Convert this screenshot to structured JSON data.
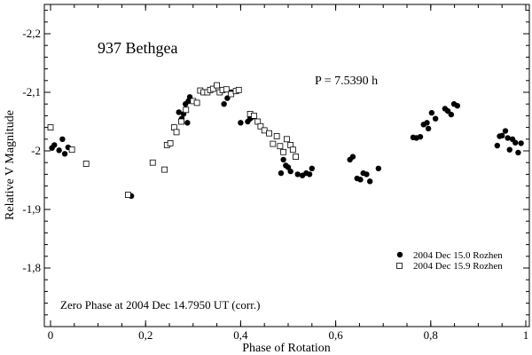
{
  "chart_data": {
    "type": "scatter",
    "title": "937 Bethgea",
    "period_label": "P = 7.5390 h",
    "zero_phase_note": "Zero Phase at 2004 Dec 14.7950 UT (corr.)",
    "xlabel": "Phase of Rotation",
    "ylabel": "Relative V Magnitude",
    "xlim": [
      0,
      1
    ],
    "ylim": [
      -1.7,
      -2.25
    ],
    "x_ticks": [
      0,
      0.2,
      0.4,
      0.6,
      0.8,
      1
    ],
    "x_tick_labels": [
      "0",
      "0,2",
      "0,4",
      "0,6",
      "0,8",
      "1"
    ],
    "y_ticks": [
      -1.8,
      -1.9,
      -2.0,
      -2.1,
      -2.2
    ],
    "y_tick_labels": [
      "-1,8",
      "-1,9",
      "-2",
      "-2,1",
      "-2,2"
    ],
    "grid": false,
    "legend_position": "bottom-right",
    "series": [
      {
        "name": "2004 Dec 15.0 Rozhen",
        "marker": "filled-circle",
        "color": "#000000",
        "points": [
          [
            0.003,
            -2.005
          ],
          [
            0.008,
            -2.01
          ],
          [
            0.018,
            -2.001
          ],
          [
            0.025,
            -2.02
          ],
          [
            0.03,
            -1.995
          ],
          [
            0.037,
            -2.006
          ],
          [
            0.17,
            -1.923
          ],
          [
            0.27,
            -2.066
          ],
          [
            0.276,
            -2.055
          ],
          [
            0.28,
            -2.063
          ],
          [
            0.284,
            -2.08
          ],
          [
            0.288,
            -2.048
          ],
          [
            0.29,
            -2.085
          ],
          [
            0.293,
            -2.092
          ],
          [
            0.365,
            -2.08
          ],
          [
            0.372,
            -2.09
          ],
          [
            0.38,
            -2.1
          ],
          [
            0.4,
            -2.048
          ],
          [
            0.415,
            -2.05
          ],
          [
            0.42,
            -2.055
          ],
          [
            0.425,
            -2.058
          ],
          [
            0.485,
            -1.962
          ],
          [
            0.49,
            -1.985
          ],
          [
            0.495,
            -1.975
          ],
          [
            0.5,
            -1.972
          ],
          [
            0.505,
            -1.965
          ],
          [
            0.52,
            -1.96
          ],
          [
            0.53,
            -1.958
          ],
          [
            0.538,
            -1.962
          ],
          [
            0.545,
            -1.96
          ],
          [
            0.55,
            -1.97
          ],
          [
            0.63,
            -1.985
          ],
          [
            0.636,
            -1.99
          ],
          [
            0.645,
            -1.953
          ],
          [
            0.652,
            -1.951
          ],
          [
            0.658,
            -1.962
          ],
          [
            0.665,
            -1.96
          ],
          [
            0.672,
            -1.948
          ],
          [
            0.69,
            -1.97
          ],
          [
            0.763,
            -2.023
          ],
          [
            0.77,
            -2.022
          ],
          [
            0.778,
            -2.024
          ],
          [
            0.785,
            -2.045
          ],
          [
            0.792,
            -2.048
          ],
          [
            0.795,
            -2.038
          ],
          [
            0.802,
            -2.065
          ],
          [
            0.81,
            -2.055
          ],
          [
            0.83,
            -2.072
          ],
          [
            0.836,
            -2.068
          ],
          [
            0.843,
            -2.062
          ],
          [
            0.849,
            -2.08
          ],
          [
            0.856,
            -2.077
          ],
          [
            0.94,
            -2.009
          ],
          [
            0.945,
            -2.025
          ],
          [
            0.95,
            -2.026
          ],
          [
            0.957,
            -2.034
          ],
          [
            0.962,
            -2.022
          ],
          [
            0.966,
            -2.002
          ],
          [
            0.972,
            -2.02
          ],
          [
            0.978,
            -2.014
          ],
          [
            0.984,
            -1.997
          ],
          [
            0.99,
            -2.013
          ]
        ]
      },
      {
        "name": "2004 Dec 15.9 Rozhen",
        "marker": "open-square",
        "color": "#000000",
        "points": [
          [
            0.0,
            -2.04
          ],
          [
            0.045,
            -2.002
          ],
          [
            0.075,
            -1.978
          ],
          [
            0.163,
            -1.925
          ],
          [
            0.215,
            -1.98
          ],
          [
            0.24,
            -1.968
          ],
          [
            0.245,
            -2.01
          ],
          [
            0.252,
            -2.013
          ],
          [
            0.26,
            -2.04
          ],
          [
            0.265,
            -2.032
          ],
          [
            0.275,
            -2.05
          ],
          [
            0.285,
            -2.07
          ],
          [
            0.3,
            -2.085
          ],
          [
            0.308,
            -2.082
          ],
          [
            0.315,
            -2.103
          ],
          [
            0.322,
            -2.1
          ],
          [
            0.33,
            -2.1
          ],
          [
            0.336,
            -2.104
          ],
          [
            0.342,
            -2.106
          ],
          [
            0.35,
            -2.112
          ],
          [
            0.356,
            -2.1
          ],
          [
            0.362,
            -2.104
          ],
          [
            0.37,
            -2.105
          ],
          [
            0.38,
            -2.097
          ],
          [
            0.39,
            -2.102
          ],
          [
            0.396,
            -2.104
          ],
          [
            0.42,
            -2.063
          ],
          [
            0.428,
            -2.06
          ],
          [
            0.436,
            -2.05
          ],
          [
            0.442,
            -2.042
          ],
          [
            0.45,
            -2.035
          ],
          [
            0.46,
            -2.03
          ],
          [
            0.468,
            -2.012
          ],
          [
            0.476,
            -2.025
          ],
          [
            0.483,
            -2.008
          ],
          [
            0.49,
            -1.998
          ],
          [
            0.497,
            -2.02
          ],
          [
            0.505,
            -2.01
          ],
          [
            0.51,
            -2.002
          ],
          [
            0.516,
            -1.99
          ]
        ]
      }
    ]
  }
}
